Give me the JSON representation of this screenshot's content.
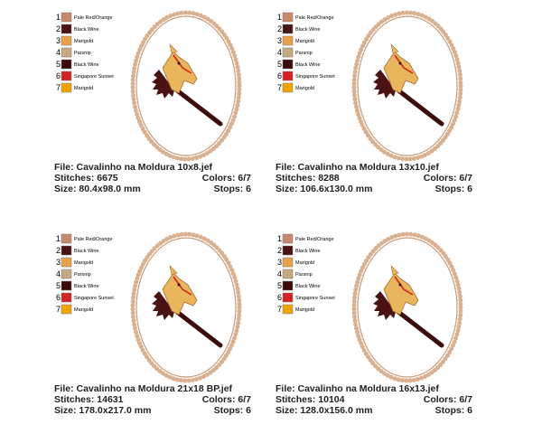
{
  "palette": [
    {
      "number": "1",
      "name": "Pale Red/Orange",
      "color": "#c98a6c"
    },
    {
      "number": "2",
      "name": "Black Wine",
      "color": "#4a1212"
    },
    {
      "number": "3",
      "name": "Marigold",
      "color": "#e9a24a"
    },
    {
      "number": "4",
      "name": "Parsnip",
      "color": "#c7a97f"
    },
    {
      "number": "5",
      "name": "Black Wine",
      "color": "#3a0a0a"
    },
    {
      "number": "6",
      "name": "Singapore Sunset",
      "color": "#d42222"
    },
    {
      "number": "7",
      "name": "Marigold",
      "color": "#f2a300"
    }
  ],
  "panels": [
    {
      "file": "File: Cavalinho na Moldura 10x8.jef",
      "stitches": "Stitches: 6675",
      "colors": "Colors: 6/7",
      "size": "Size: 80.4x98.0 mm",
      "stops": "Stops: 6"
    },
    {
      "file": "File: Cavalinho na Moldura 13x10.jef",
      "stitches": "Stitches: 8288",
      "colors": "Colors: 6/7",
      "size": "Size: 106.6x130.0 mm",
      "stops": "Stops: 6"
    },
    {
      "file": "File: Cavalinho na Moldura 21x18 BP.jef",
      "stitches": "Stitches: 14631",
      "colors": "Colors: 6/7",
      "size": "Size: 178.0x217.0 mm",
      "stops": "Stops: 6"
    },
    {
      "file": "File: Cavalinho na Moldura 16x13.jef",
      "stitches": "Stitches: 10104",
      "colors": "Colors: 6/7",
      "size": "Size: 128.0x156.0 mm",
      "stops": "Stops: 6"
    }
  ]
}
